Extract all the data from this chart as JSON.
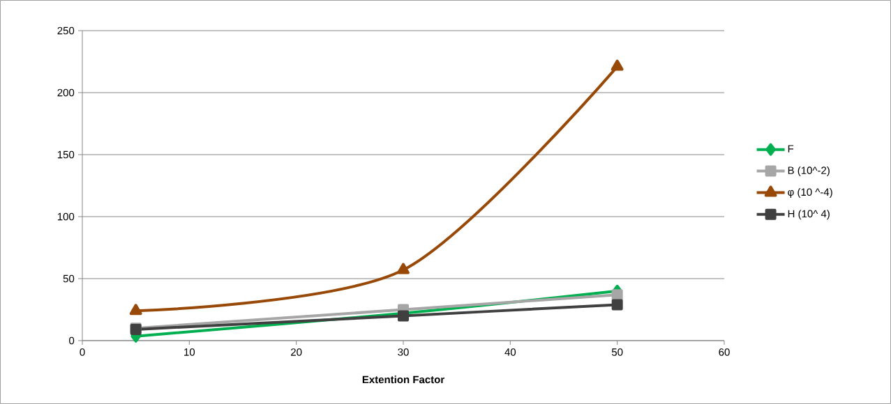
{
  "chart_data": {
    "type": "line",
    "xlabel": "Extention Factor",
    "x": [
      5,
      30,
      50
    ],
    "series": [
      {
        "name": "F",
        "color": "#00b050",
        "marker": "diamond",
        "values": [
          3.5,
          22,
          40
        ]
      },
      {
        "name": "B  (10^-2)",
        "color": "#a6a6a6",
        "marker": "square",
        "values": [
          10,
          25,
          37
        ]
      },
      {
        "name": "φ (10 ^-4)",
        "color": "#984807",
        "marker": "triangle",
        "values": [
          24,
          57,
          221
        ]
      },
      {
        "name": "H  (10^ 4)",
        "color": "#404040",
        "marker": "square",
        "values": [
          9,
          20,
          29
        ]
      }
    ],
    "xlim": [
      0,
      60
    ],
    "xticks": [
      0,
      10,
      20,
      30,
      40,
      50,
      60
    ],
    "ylim": [
      0,
      250
    ],
    "yticks": [
      0,
      50,
      100,
      150,
      200,
      250
    ],
    "grid": "y",
    "legend": "right",
    "line_style": "solid"
  }
}
